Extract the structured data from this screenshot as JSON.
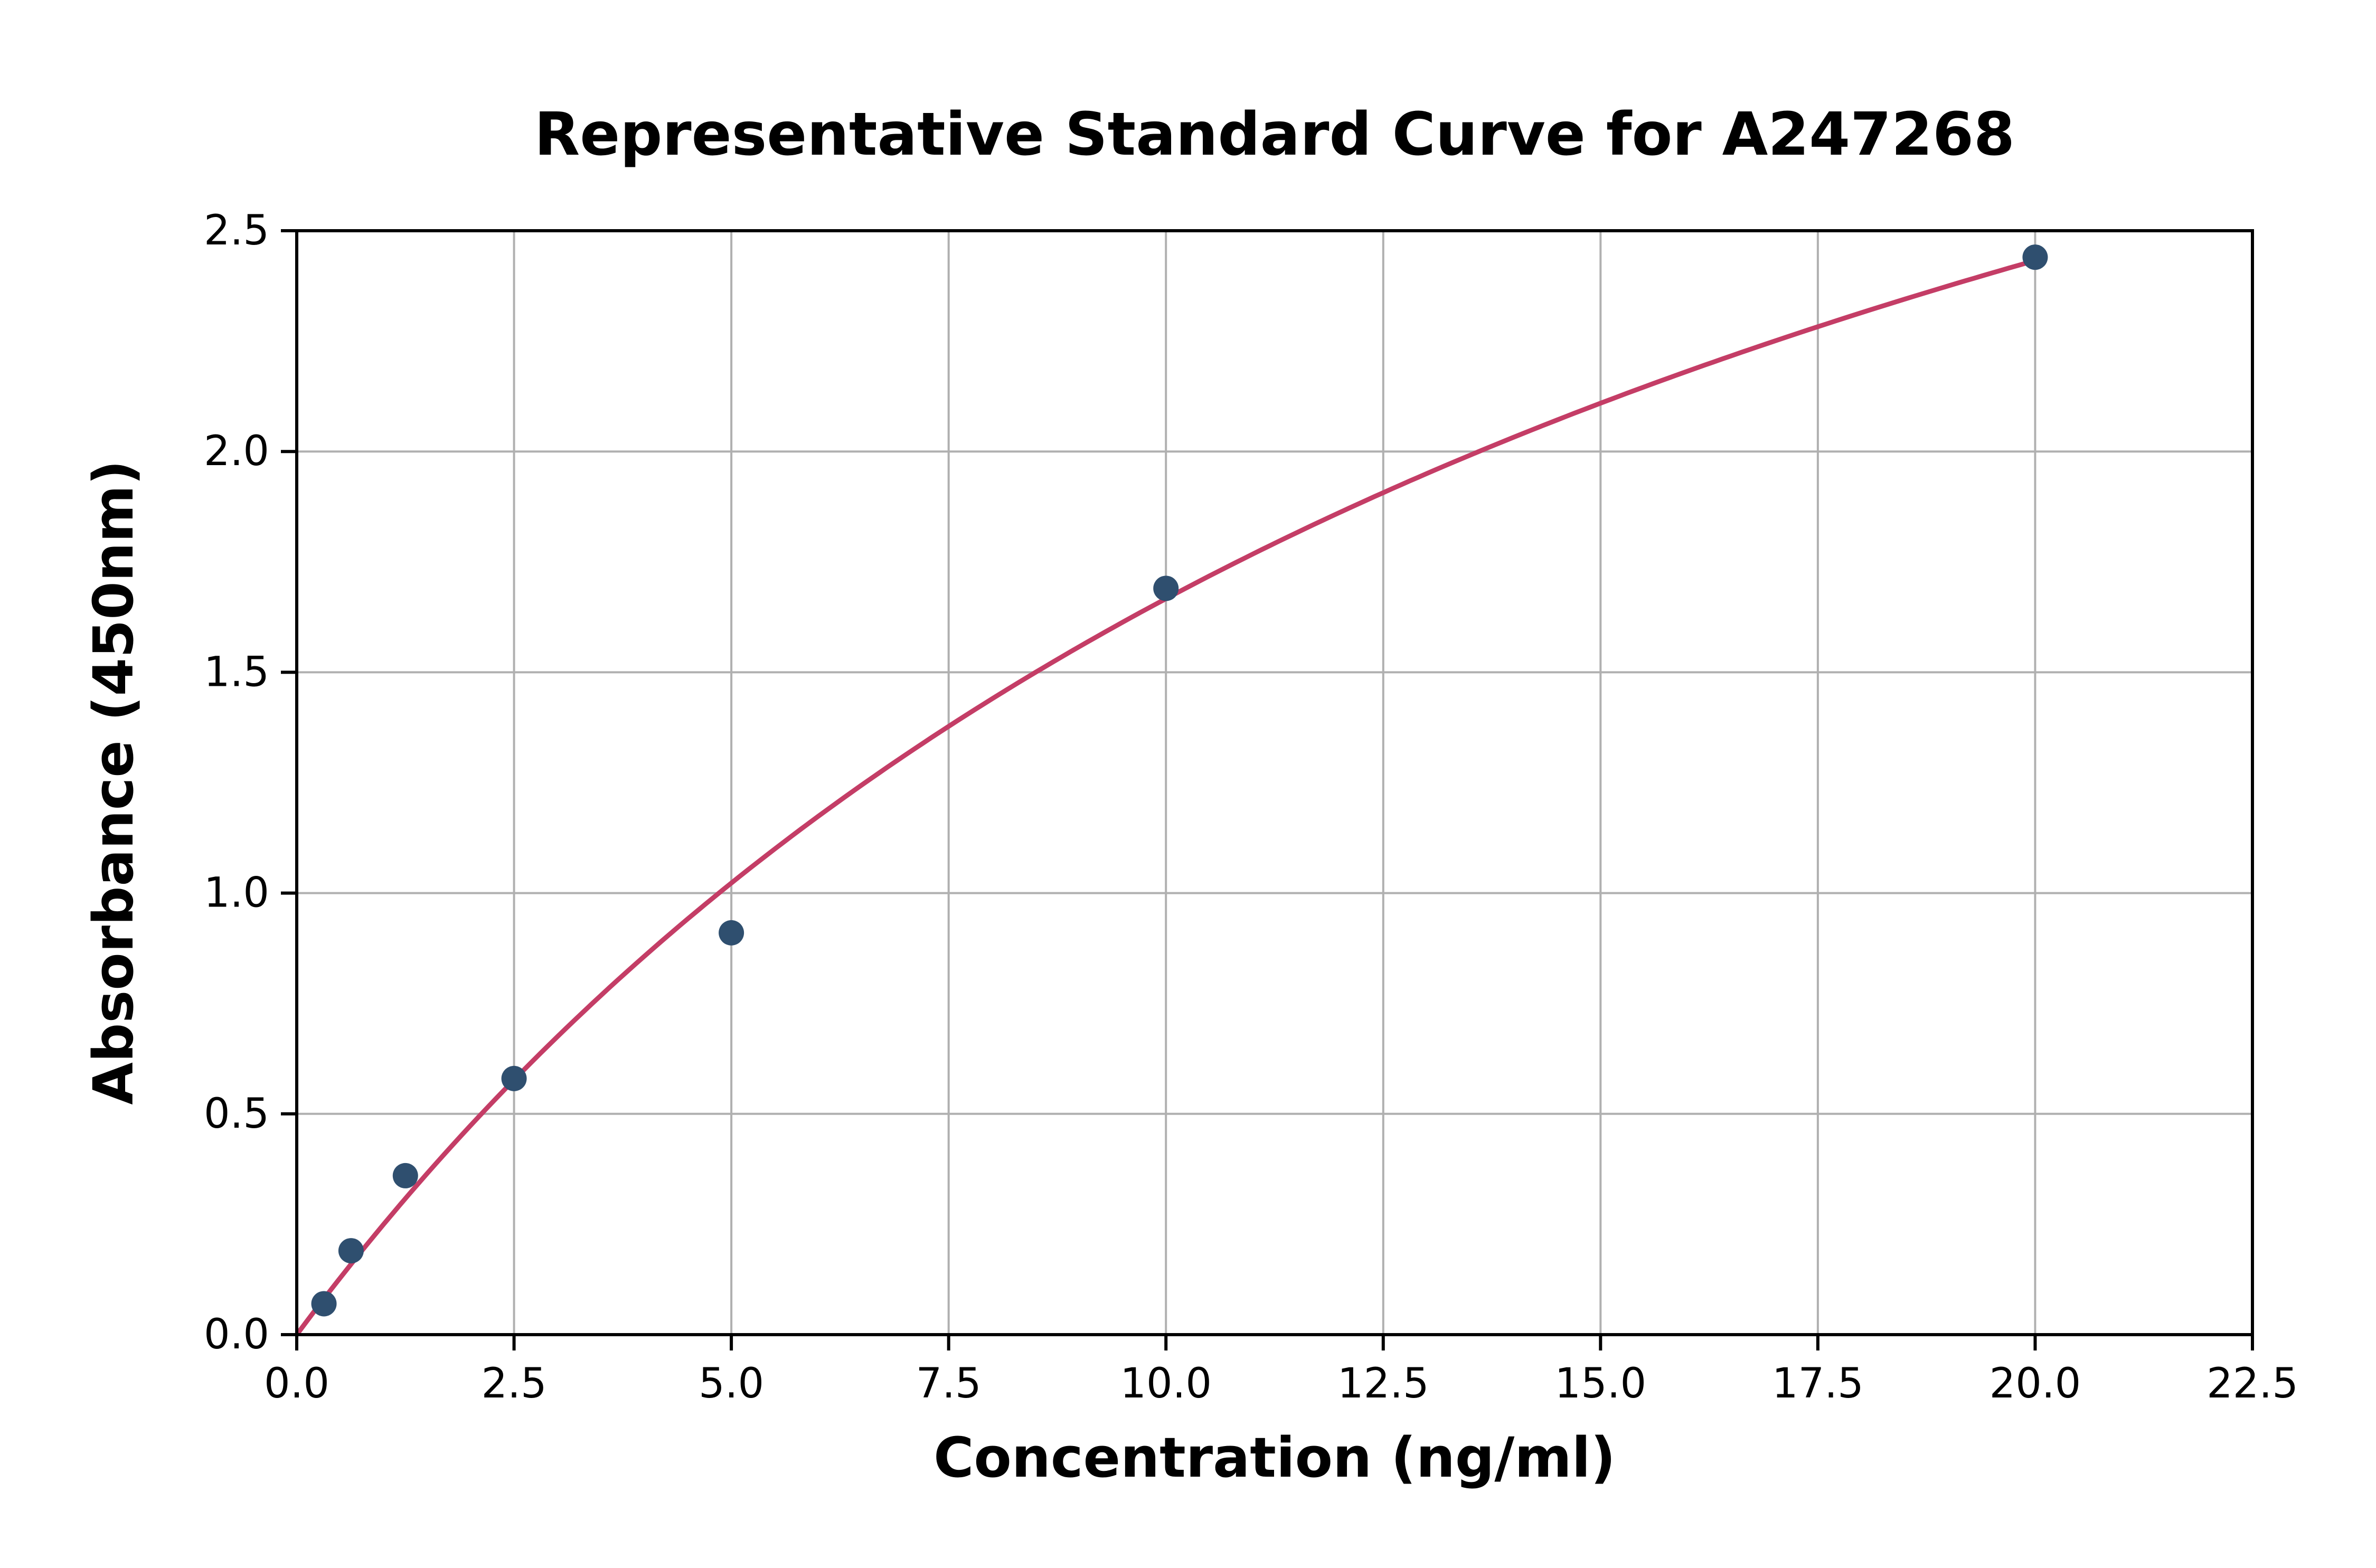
{
  "chart_data": {
    "type": "scatter",
    "title": "Representative Standard Curve for A247268",
    "xlabel": "Concentration (ng/ml)",
    "ylabel": "Absorbance (450nm)",
    "xlim": [
      0,
      22.5
    ],
    "ylim": [
      0,
      2.5
    ],
    "x_ticks": [
      0.0,
      2.5,
      5.0,
      7.5,
      10.0,
      12.5,
      15.0,
      17.5,
      20.0,
      22.5
    ],
    "y_ticks": [
      0.0,
      0.5,
      1.0,
      1.5,
      2.0,
      2.5
    ],
    "grid": true,
    "legend": "none",
    "points": {
      "x": [
        0.313,
        0.625,
        1.25,
        2.5,
        5.0,
        10.0,
        20.0
      ],
      "y": [
        0.07,
        0.19,
        0.36,
        0.58,
        0.91,
        1.69,
        2.44
      ]
    },
    "fit_curve": {
      "model": "saturation y = a*x/(b+x)",
      "a": 4.5,
      "b": 17,
      "x_start": 0,
      "x_end": 20
    },
    "colors": {
      "points": "#2f4f6f",
      "curve": "#c43d66",
      "grid": "#b0b0b0",
      "spine": "#000000",
      "tick_text": "#000000"
    }
  }
}
